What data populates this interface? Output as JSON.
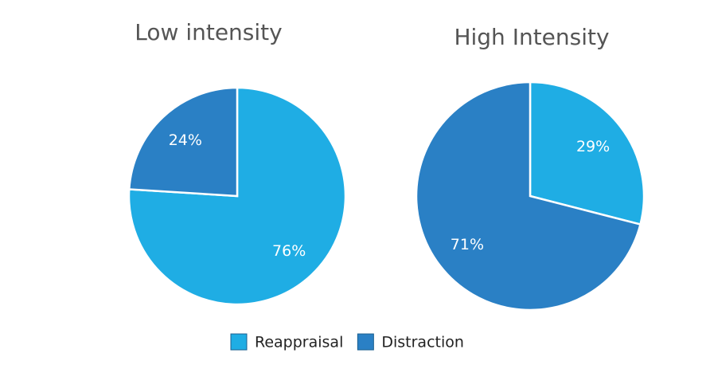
{
  "chart_data": [
    {
      "type": "pie",
      "title": "Low intensity",
      "categories": [
        "Reappraisal",
        "Distraction"
      ],
      "values": [
        76,
        24
      ],
      "value_labels": [
        "76%",
        "24%"
      ],
      "colors": [
        "#1fade4",
        "#2a80c5"
      ]
    },
    {
      "type": "pie",
      "title": "High Intensity",
      "categories": [
        "Reappraisal",
        "Distraction"
      ],
      "values": [
        29,
        71
      ],
      "value_labels": [
        "29%",
        "71%"
      ],
      "colors": [
        "#1fade4",
        "#2a80c5"
      ]
    }
  ]
}
